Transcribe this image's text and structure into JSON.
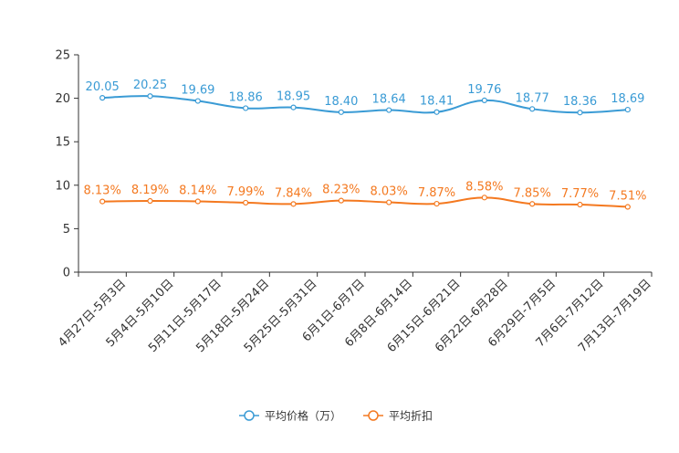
{
  "chart_data": {
    "type": "line",
    "title": "",
    "xlabel": "",
    "ylabel": "",
    "ylim": [
      0,
      25
    ],
    "yticks": [
      0,
      5,
      10,
      15,
      20,
      25
    ],
    "grid": false,
    "legend_position": "bottom-center",
    "categories": [
      "4月27日-5月3日",
      "5月4日-5月10日",
      "5月11日-5月17日",
      "5月18日-5月24日",
      "5月25日-5月31日",
      "6月1日-6月7日",
      "6月8日-6月14日",
      "6月15日-6月21日",
      "6月22日-6月28日",
      "6月29日-7月5日",
      "7月6日-7月12日",
      "7月13日-7月19日"
    ],
    "series": [
      {
        "name": "平均价格（万）",
        "color": "#3a9bd5",
        "values": [
          20.05,
          20.25,
          19.69,
          18.86,
          18.95,
          18.4,
          18.64,
          18.41,
          19.76,
          18.77,
          18.36,
          18.69
        ],
        "labels": [
          "20.05",
          "20.25",
          "19.69",
          "18.86",
          "18.95",
          "18.40",
          "18.64",
          "18.41",
          "19.76",
          "18.77",
          "18.36",
          "18.69"
        ]
      },
      {
        "name": "平均折扣",
        "color": "#f47920",
        "values": [
          8.13,
          8.19,
          8.14,
          7.99,
          7.84,
          8.23,
          8.03,
          7.87,
          8.58,
          7.85,
          7.77,
          7.51
        ],
        "labels": [
          "8.13%",
          "8.19%",
          "8.14%",
          "7.99%",
          "7.84%",
          "8.23%",
          "8.03%",
          "7.87%",
          "8.58%",
          "7.85%",
          "7.77%",
          "7.51%"
        ]
      }
    ]
  }
}
